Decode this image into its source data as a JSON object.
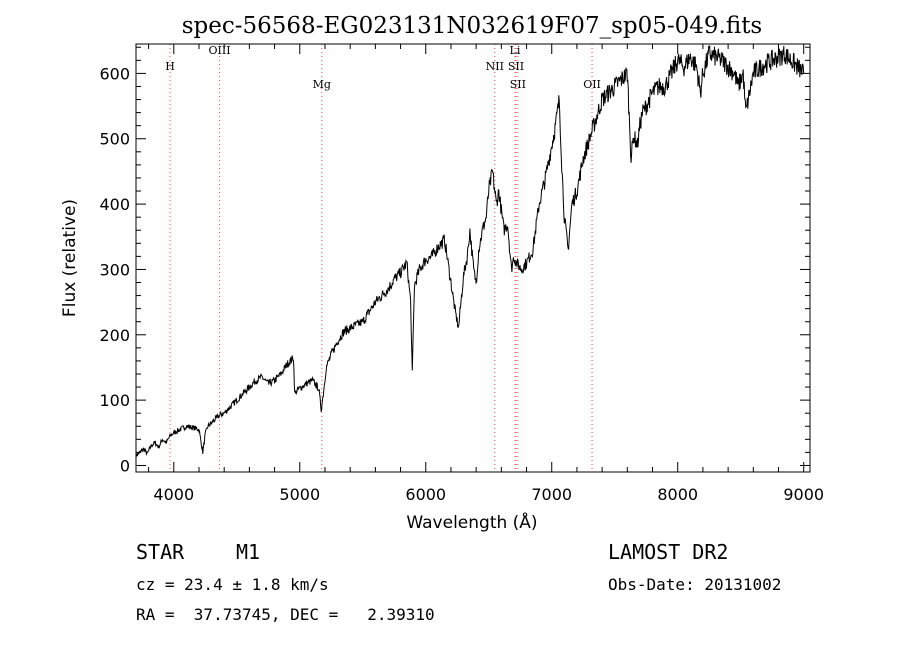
{
  "chart_data": {
    "type": "line",
    "title": "spec-56568-EG023131N032619F07_sp05-049.fits",
    "xlabel": "Wavelength (Å)",
    "ylabel": "Flux (relative)",
    "xlim": [
      3700,
      9050
    ],
    "ylim": [
      -10,
      645
    ],
    "x_ticks": [
      4000,
      5000,
      6000,
      7000,
      8000,
      9000
    ],
    "y_ticks": [
      0,
      100,
      200,
      300,
      400,
      500,
      600
    ],
    "grid": false,
    "line_color": "#000000",
    "marker_line_color": "#e05050",
    "lines": [
      {
        "label": "H",
        "wavelength": 3970,
        "label_flux": 605
      },
      {
        "label": "OIII",
        "wavelength": 4363,
        "label_flux": 630
      },
      {
        "label": "Mg",
        "wavelength": 5175,
        "label_flux": 578
      },
      {
        "label": "NII",
        "wavelength": 6548,
        "label_flux": 605
      },
      {
        "label": "Li",
        "wavelength": 6708,
        "label_flux": 630
      },
      {
        "label": "SII",
        "wavelength": 6716,
        "label_flux": 605
      },
      {
        "label": "SII",
        "wavelength": 6731,
        "label_flux": 578
      },
      {
        "label": "OII",
        "wavelength": 7320,
        "label_flux": 578
      }
    ],
    "series": [
      {
        "x": [
          3700,
          3730,
          3760,
          3790,
          3820,
          3850,
          3880,
          3910,
          3940,
          3970,
          4000,
          4050,
          4100,
          4150,
          4200,
          4230,
          4250,
          4270,
          4300,
          4350,
          4400,
          4450,
          4500,
          4550,
          4600,
          4650,
          4700,
          4750,
          4800,
          4850,
          4900,
          4950,
          4960,
          4980,
          5000,
          5050,
          5100,
          5150,
          5170,
          5190,
          5210,
          5250,
          5300,
          5350,
          5400,
          5450,
          5500,
          5550,
          5600,
          5650,
          5700,
          5750,
          5800,
          5850,
          5880,
          5893,
          5910,
          5950,
          6000,
          6050,
          6100,
          6150,
          6200,
          6230,
          6260,
          6300,
          6330,
          6350,
          6380,
          6400,
          6420,
          6450,
          6480,
          6500,
          6530,
          6560,
          6580,
          6600,
          6620,
          6650,
          6680,
          6700,
          6720,
          6760,
          6800,
          6850,
          6900,
          6950,
          7000,
          7030,
          7060,
          7080,
          7100,
          7130,
          7160,
          7200,
          7250,
          7300,
          7350,
          7400,
          7450,
          7500,
          7550,
          7600,
          7630,
          7650,
          7680,
          7700,
          7720,
          7750,
          7800,
          7850,
          7900,
          7950,
          8000,
          8050,
          8100,
          8150,
          8180,
          8200,
          8250,
          8300,
          8350,
          8400,
          8450,
          8480,
          8500,
          8520,
          8540,
          8560,
          8600,
          8662,
          8700,
          8750,
          8800,
          8850,
          8900,
          8950,
          9000
        ],
        "y": [
          15,
          20,
          25,
          18,
          30,
          35,
          28,
          40,
          35,
          45,
          50,
          55,
          60,
          58,
          55,
          20,
          48,
          60,
          65,
          75,
          80,
          90,
          100,
          110,
          120,
          130,
          135,
          125,
          130,
          140,
          155,
          165,
          110,
          115,
          118,
          125,
          130,
          118,
          85,
          115,
          150,
          170,
          190,
          205,
          210,
          215,
          220,
          235,
          250,
          260,
          270,
          285,
          295,
          310,
          250,
          140,
          275,
          300,
          315,
          320,
          335,
          345,
          280,
          240,
          210,
          290,
          320,
          360,
          300,
          280,
          330,
          360,
          380,
          420,
          450,
          400,
          420,
          390,
          360,
          370,
          300,
          320,
          310,
          300,
          310,
          330,
          400,
          440,
          490,
          520,
          560,
          460,
          380,
          330,
          400,
          420,
          470,
          500,
          530,
          560,
          570,
          580,
          590,
          600,
          470,
          505,
          490,
          520,
          540,
          550,
          570,
          580,
          580,
          600,
          620,
          610,
          625,
          610,
          570,
          600,
          630,
          625,
          620,
          610,
          600,
          580,
          590,
          600,
          540,
          560,
          600,
          610,
          615,
          620,
          625,
          630,
          620,
          610,
          600
        ]
      }
    ]
  },
  "info": {
    "class_label": "STAR",
    "subclass": "M1",
    "survey": "LAMOST DR2",
    "cz": "cz = 23.4 ± 1.8 km/s",
    "obs_date": "Obs-Date: 20131002",
    "coords": "RA =  37.73745, DEC =   2.39310"
  }
}
